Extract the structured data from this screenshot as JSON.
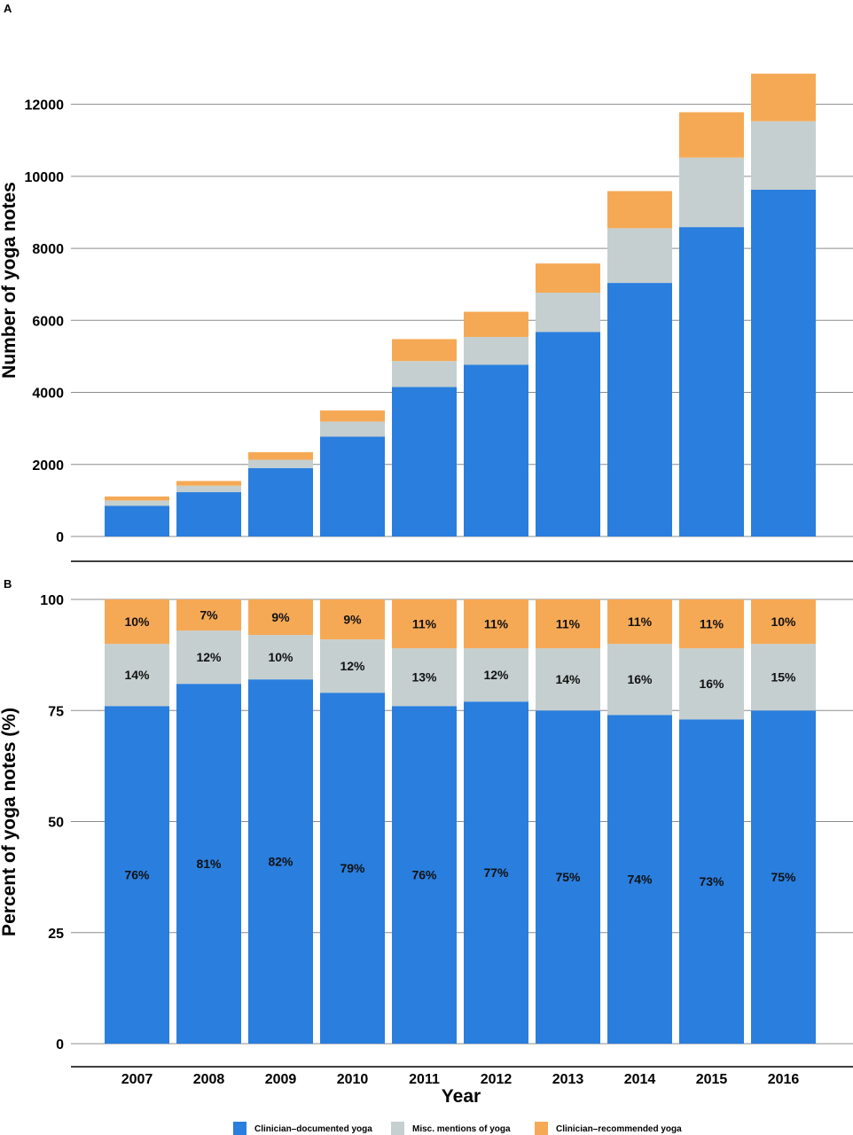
{
  "panels": {
    "a": {
      "label": "A"
    },
    "b": {
      "label": "B"
    }
  },
  "colors": {
    "clinician_documented": "#2a7ede",
    "misc_mentions": "#c5cfcf",
    "clinician_recommended": "#f6a955"
  },
  "chart_data": [
    {
      "type": "bar",
      "stacked": true,
      "panel": "A",
      "ylabel": "Number of yoga notes",
      "xlabel": "",
      "ylim": [
        0,
        13000
      ],
      "yticks": [
        0,
        2000,
        4000,
        6000,
        8000,
        10000,
        12000
      ],
      "grid": true,
      "categories": [
        "2007",
        "2008",
        "2009",
        "2010",
        "2011",
        "2012",
        "2013",
        "2014",
        "2015",
        "2016"
      ],
      "series": [
        {
          "name": "Clinician–documented yoga",
          "values": [
            850,
            1230,
            1900,
            2770,
            4150,
            4770,
            5680,
            7040,
            8590,
            9630
          ]
        },
        {
          "name": "Misc. mentions of yoga",
          "values": [
            150,
            180,
            230,
            420,
            720,
            770,
            1090,
            1520,
            1930,
            1900
          ]
        },
        {
          "name": "Clinician–recommended yoga",
          "values": [
            110,
            130,
            210,
            310,
            610,
            700,
            810,
            1030,
            1260,
            1320
          ]
        }
      ]
    },
    {
      "type": "bar",
      "stacked": true,
      "panel": "B",
      "ylabel": "Percent of yoga notes (%)",
      "xlabel": "Year",
      "ylim": [
        0,
        100
      ],
      "yticks": [
        0,
        25,
        50,
        75,
        100
      ],
      "grid": true,
      "categories": [
        "2007",
        "2008",
        "2009",
        "2010",
        "2011",
        "2012",
        "2013",
        "2014",
        "2015",
        "2016"
      ],
      "series": [
        {
          "name": "Clinician–documented yoga",
          "values": [
            76,
            81,
            82,
            79,
            76,
            77,
            75,
            74,
            73,
            75
          ],
          "labels": [
            "76%",
            "81%",
            "82%",
            "79%",
            "76%",
            "77%",
            "75%",
            "74%",
            "73%",
            "75%"
          ]
        },
        {
          "name": "Misc. mentions of yoga",
          "values": [
            14,
            12,
            10,
            12,
            13,
            12,
            14,
            16,
            16,
            15
          ],
          "labels": [
            "14%",
            "12%",
            "10%",
            "12%",
            "13%",
            "12%",
            "14%",
            "16%",
            "16%",
            "15%"
          ]
        },
        {
          "name": "Clinician–recommended yoga",
          "values": [
            10,
            7,
            9,
            9,
            11,
            11,
            11,
            11,
            11,
            10
          ],
          "labels": [
            "10%",
            "7%",
            "9%",
            "9%",
            "11%",
            "11%",
            "11%",
            "11%",
            "11%",
            "10%"
          ]
        }
      ]
    }
  ],
  "legend": {
    "position": "bottom",
    "items": [
      {
        "label": "Clinician–documented yoga",
        "color": "#2a7ede"
      },
      {
        "label": "Misc. mentions of yoga",
        "color": "#c5cfcf"
      },
      {
        "label": "Clinician–recommended yoga",
        "color": "#f6a955"
      }
    ]
  }
}
